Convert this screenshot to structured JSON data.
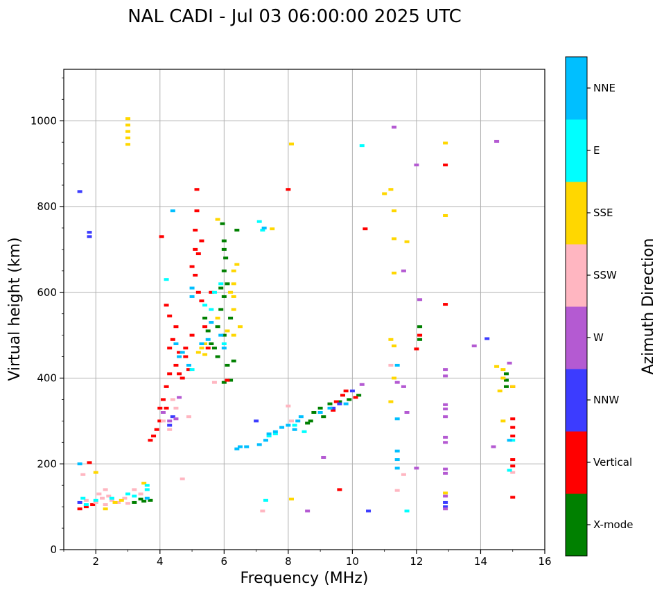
{
  "chart_data": {
    "type": "scatter",
    "title": "NAL CADI - Jul 03 06:00:00 2025 UTC",
    "xlabel": "Frequency (MHz)",
    "ylabel": "Virtual height (km)",
    "xlim": [
      1,
      16
    ],
    "ylim": [
      0,
      1120
    ],
    "x_ticks": [
      2,
      4,
      6,
      8,
      10,
      12,
      14,
      16
    ],
    "y_ticks": [
      0,
      200,
      400,
      600,
      800,
      1000
    ],
    "grid": true,
    "colorbar": {
      "title": "Azimuth Direction",
      "categories": [
        {
          "label": "X-mode",
          "color": "#008000"
        },
        {
          "label": "Vertical",
          "color": "#ff0000"
        },
        {
          "label": "NNW",
          "color": "#3c3cff"
        },
        {
          "label": "W",
          "color": "#b45ad2"
        },
        {
          "label": "SSW",
          "color": "#ffb6c1"
        },
        {
          "label": "SSE",
          "color": "#ffd700"
        },
        {
          "label": "E",
          "color": "#00ffff"
        },
        {
          "label": "NNE",
          "color": "#00bfff"
        }
      ]
    },
    "series": [
      {
        "name": "X-mode",
        "points": [
          [
            3.5,
            113
          ],
          [
            3.7,
            115
          ],
          [
            3.2,
            110
          ],
          [
            3.4,
            118
          ],
          [
            5.6,
            480
          ],
          [
            5.8,
            520
          ],
          [
            5.9,
            560
          ],
          [
            6.0,
            590
          ],
          [
            6.1,
            620
          ],
          [
            5.7,
            470
          ],
          [
            6.0,
            500
          ],
          [
            6.2,
            540
          ],
          [
            5.9,
            610
          ],
          [
            6.0,
            650
          ],
          [
            5.8,
            450
          ],
          [
            6.1,
            430
          ],
          [
            6.3,
            440
          ],
          [
            6.4,
            745
          ],
          [
            6.0,
            700
          ],
          [
            6.05,
            680
          ],
          [
            8.7,
            300
          ],
          [
            8.8,
            320
          ],
          [
            9.0,
            330
          ],
          [
            9.1,
            310
          ],
          [
            9.3,
            340
          ],
          [
            9.6,
            345
          ],
          [
            9.9,
            350
          ],
          [
            10.2,
            360
          ],
          [
            8.6,
            295
          ],
          [
            14.8,
            410
          ],
          [
            14.8,
            395
          ],
          [
            14.8,
            380
          ],
          [
            12.1,
            520
          ],
          [
            12.1,
            490
          ],
          [
            6.0,
            390
          ],
          [
            6.2,
            395
          ],
          [
            5.4,
            540
          ],
          [
            5.5,
            510
          ],
          [
            5.95,
            760
          ],
          [
            6.0,
            720
          ]
        ]
      },
      {
        "name": "Vertical",
        "points": [
          [
            1.5,
            95
          ],
          [
            1.7,
            100
          ],
          [
            1.9,
            105
          ],
          [
            3.7,
            255
          ],
          [
            3.8,
            265
          ],
          [
            3.9,
            280
          ],
          [
            4.0,
            300
          ],
          [
            4.0,
            330
          ],
          [
            4.1,
            350
          ],
          [
            4.2,
            330
          ],
          [
            4.2,
            380
          ],
          [
            4.3,
            410
          ],
          [
            4.3,
            470
          ],
          [
            4.4,
            490
          ],
          [
            4.5,
            430
          ],
          [
            4.6,
            410
          ],
          [
            4.7,
            400
          ],
          [
            4.6,
            460
          ],
          [
            4.8,
            450
          ],
          [
            4.8,
            470
          ],
          [
            4.2,
            570
          ],
          [
            4.3,
            545
          ],
          [
            4.5,
            520
          ],
          [
            4.9,
            420
          ],
          [
            5.0,
            500
          ],
          [
            5.2,
            600
          ],
          [
            5.1,
            640
          ],
          [
            5.3,
            580
          ],
          [
            5.4,
            520
          ],
          [
            5.6,
            600
          ],
          [
            5.0,
            660
          ],
          [
            5.1,
            700
          ],
          [
            5.2,
            690
          ],
          [
            5.3,
            720
          ],
          [
            5.15,
            790
          ],
          [
            5.15,
            840
          ],
          [
            4.05,
            730
          ],
          [
            5.1,
            745
          ],
          [
            8.0,
            840
          ],
          [
            9.4,
            325
          ],
          [
            9.5,
            345
          ],
          [
            9.7,
            360
          ],
          [
            9.8,
            370
          ],
          [
            9.6,
            140
          ],
          [
            15.0,
            380
          ],
          [
            15.0,
            305
          ],
          [
            15.0,
            285
          ],
          [
            15.0,
            265
          ],
          [
            15.0,
            210
          ],
          [
            15.0,
            195
          ],
          [
            15.0,
            122
          ],
          [
            12.9,
            897
          ],
          [
            12.9,
            572
          ],
          [
            12.0,
            468
          ],
          [
            12.1,
            500
          ],
          [
            6.1,
            395
          ],
          [
            5.5,
            470
          ],
          [
            10.4,
            748
          ],
          [
            10.1,
            355
          ],
          [
            1.8,
            203
          ]
        ]
      },
      {
        "name": "NNW",
        "points": [
          [
            1.5,
            835
          ],
          [
            1.8,
            740
          ],
          [
            1.8,
            730
          ],
          [
            1.5,
            110
          ],
          [
            10.5,
            90
          ],
          [
            12.9,
            100
          ],
          [
            12.9,
            110
          ],
          [
            10.0,
            370
          ],
          [
            9.4,
            330
          ],
          [
            9.6,
            340
          ],
          [
            7.0,
            300
          ],
          [
            14.2,
            492
          ],
          [
            4.3,
            290
          ],
          [
            4.4,
            310
          ]
        ]
      },
      {
        "name": "W",
        "points": [
          [
            4.1,
            320
          ],
          [
            4.3,
            300
          ],
          [
            4.5,
            305
          ],
          [
            4.6,
            355
          ],
          [
            8.6,
            90
          ],
          [
            9.1,
            215
          ],
          [
            11.3,
            985
          ],
          [
            12.0,
            897
          ],
          [
            12.1,
            583
          ],
          [
            12.0,
            190
          ],
          [
            11.7,
            320
          ],
          [
            11.6,
            380
          ],
          [
            11.4,
            390
          ],
          [
            12.9,
            420
          ],
          [
            12.9,
            405
          ],
          [
            12.9,
            338
          ],
          [
            12.9,
            328
          ],
          [
            12.9,
            310
          ],
          [
            12.9,
            262
          ],
          [
            12.9,
            250
          ],
          [
            12.9,
            188
          ],
          [
            12.9,
            178
          ],
          [
            12.9,
            125
          ],
          [
            12.9,
            95
          ],
          [
            13.8,
            475
          ],
          [
            14.4,
            240
          ],
          [
            14.9,
            435
          ],
          [
            11.6,
            650
          ],
          [
            10.3,
            385
          ],
          [
            14.5,
            952
          ]
        ]
      },
      {
        "name": "SSW",
        "points": [
          [
            1.7,
            115
          ],
          [
            2.0,
            110
          ],
          [
            2.2,
            120
          ],
          [
            2.3,
            105
          ],
          [
            2.5,
            115
          ],
          [
            2.7,
            110
          ],
          [
            2.9,
            120
          ],
          [
            3.0,
            108
          ],
          [
            1.6,
            175
          ],
          [
            2.1,
            130
          ],
          [
            2.3,
            140
          ],
          [
            2.4,
            125
          ],
          [
            3.2,
            140
          ],
          [
            3.4,
            130
          ],
          [
            4.1,
            300
          ],
          [
            4.3,
            280
          ],
          [
            4.5,
            330
          ],
          [
            4.7,
            165
          ],
          [
            4.9,
            310
          ],
          [
            8.0,
            335
          ],
          [
            8.1,
            300
          ],
          [
            11.2,
            430
          ],
          [
            11.4,
            138
          ],
          [
            11.6,
            175
          ],
          [
            15.0,
            180
          ],
          [
            5.7,
            390
          ],
          [
            7.2,
            90
          ],
          [
            4.4,
            350
          ]
        ]
      },
      {
        "name": "SSE",
        "points": [
          [
            2.0,
            180
          ],
          [
            2.3,
            95
          ],
          [
            2.6,
            110
          ],
          [
            3.0,
            1005
          ],
          [
            3.0,
            990
          ],
          [
            3.0,
            975
          ],
          [
            3.0,
            960
          ],
          [
            3.0,
            945
          ],
          [
            2.8,
            115
          ],
          [
            3.5,
            155
          ],
          [
            5.2,
            460
          ],
          [
            5.3,
            470
          ],
          [
            5.4,
            455
          ],
          [
            5.4,
            480
          ],
          [
            5.8,
            540
          ],
          [
            6.3,
            560
          ],
          [
            6.3,
            590
          ],
          [
            6.3,
            620
          ],
          [
            6.3,
            650
          ],
          [
            6.4,
            665
          ],
          [
            6.2,
            600
          ],
          [
            6.1,
            510
          ],
          [
            6.5,
            520
          ],
          [
            6.3,
            500
          ],
          [
            5.8,
            770
          ],
          [
            7.5,
            748
          ],
          [
            8.1,
            946
          ],
          [
            8.1,
            118
          ],
          [
            11.0,
            830
          ],
          [
            11.2,
            840
          ],
          [
            11.3,
            790
          ],
          [
            11.2,
            490
          ],
          [
            11.3,
            475
          ],
          [
            11.3,
            400
          ],
          [
            11.2,
            345
          ],
          [
            11.3,
            725
          ],
          [
            11.7,
            718
          ],
          [
            11.3,
            645
          ],
          [
            12.9,
            948
          ],
          [
            12.9,
            779
          ],
          [
            12.9,
            132
          ],
          [
            14.5,
            427
          ],
          [
            14.7,
            420
          ],
          [
            14.7,
            400
          ],
          [
            14.7,
            300
          ],
          [
            14.6,
            370
          ],
          [
            15.0,
            380
          ]
        ]
      },
      {
        "name": "E",
        "points": [
          [
            1.6,
            120
          ],
          [
            1.7,
            105
          ],
          [
            2.0,
            115
          ],
          [
            2.5,
            120
          ],
          [
            3.0,
            130
          ],
          [
            3.2,
            125
          ],
          [
            3.6,
            140
          ],
          [
            3.6,
            150
          ],
          [
            4.2,
            630
          ],
          [
            5.0,
            420
          ],
          [
            5.4,
            570
          ],
          [
            5.6,
            560
          ],
          [
            5.7,
            600
          ],
          [
            5.9,
            620
          ],
          [
            6.0,
            480
          ],
          [
            7.1,
            765
          ],
          [
            7.3,
            115
          ],
          [
            11.7,
            90
          ],
          [
            14.9,
            185
          ],
          [
            15.0,
            255
          ],
          [
            8.2,
            290
          ],
          [
            8.5,
            275
          ],
          [
            7.2,
            745
          ],
          [
            10.3,
            942
          ],
          [
            7.4,
            265
          ],
          [
            7.6,
            270
          ]
        ]
      },
      {
        "name": "NNE",
        "points": [
          [
            1.5,
            200
          ],
          [
            3.6,
            120
          ],
          [
            4.4,
            790
          ],
          [
            4.5,
            480
          ],
          [
            4.6,
            450
          ],
          [
            4.7,
            460
          ],
          [
            4.9,
            430
          ],
          [
            5.0,
            590
          ],
          [
            5.0,
            610
          ],
          [
            5.3,
            480
          ],
          [
            5.5,
            490
          ],
          [
            5.6,
            530
          ],
          [
            5.9,
            500
          ],
          [
            6.0,
            470
          ],
          [
            6.4,
            235
          ],
          [
            6.5,
            240
          ],
          [
            6.7,
            240
          ],
          [
            7.1,
            245
          ],
          [
            7.3,
            255
          ],
          [
            7.4,
            270
          ],
          [
            7.6,
            275
          ],
          [
            7.8,
            285
          ],
          [
            8.0,
            290
          ],
          [
            8.3,
            300
          ],
          [
            8.2,
            280
          ],
          [
            8.4,
            310
          ],
          [
            9.0,
            320
          ],
          [
            9.3,
            330
          ],
          [
            9.8,
            340
          ],
          [
            11.4,
            230
          ],
          [
            11.4,
            210
          ],
          [
            11.4,
            190
          ],
          [
            11.4,
            430
          ],
          [
            11.4,
            305
          ],
          [
            14.9,
            255
          ],
          [
            7.25,
            750
          ]
        ]
      }
    ]
  }
}
